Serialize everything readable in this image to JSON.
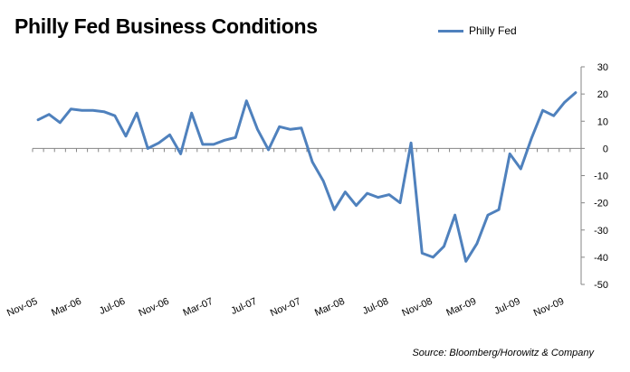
{
  "title": "Philly Fed Business Conditions",
  "source": "Source: Bloomberg/Horowitz & Company",
  "chart_data": {
    "type": "line",
    "title": "Philly Fed Business Conditions",
    "legend_position": "top-right",
    "grid": false,
    "ylim": [
      -50,
      30
    ],
    "y_ticks": [
      30,
      20,
      10,
      0,
      -10,
      -20,
      -30,
      -40,
      -50
    ],
    "y_axis_side": "right",
    "x_tick_labels": [
      "Nov-05",
      "Mar-06",
      "Jul-06",
      "Nov-06",
      "Mar-07",
      "Jul-07",
      "Nov-07",
      "Mar-08",
      "Jul-08",
      "Nov-08",
      "Mar-09",
      "Jul-09",
      "Nov-09"
    ],
    "series": [
      {
        "name": "Philly Fed",
        "color": "#4f81bd",
        "x": [
          "Nov-05",
          "Dec-05",
          "Jan-06",
          "Feb-06",
          "Mar-06",
          "Apr-06",
          "May-06",
          "Jun-06",
          "Jul-06",
          "Aug-06",
          "Sep-06",
          "Oct-06",
          "Nov-06",
          "Dec-06",
          "Jan-07",
          "Feb-07",
          "Mar-07",
          "Apr-07",
          "May-07",
          "Jun-07",
          "Jul-07",
          "Aug-07",
          "Sep-07",
          "Oct-07",
          "Nov-07",
          "Dec-07",
          "Jan-08",
          "Feb-08",
          "Mar-08",
          "Apr-08",
          "May-08",
          "Jun-08",
          "Jul-08",
          "Aug-08",
          "Sep-08",
          "Oct-08",
          "Nov-08",
          "Dec-08",
          "Jan-09",
          "Feb-09",
          "Mar-09",
          "Apr-09",
          "May-09",
          "Jun-09",
          "Jul-09",
          "Aug-09",
          "Sep-09",
          "Oct-09",
          "Nov-09",
          "Dec-09"
        ],
        "values": [
          10.5,
          12.5,
          9.5,
          14.5,
          14,
          14,
          13.5,
          12,
          4.5,
          13,
          0,
          2,
          5,
          -2,
          13,
          1.5,
          1.5,
          3,
          4,
          17.5,
          7,
          -0.5,
          8,
          7,
          7.5,
          -5,
          -12,
          -22.5,
          -16,
          -21,
          -16.5,
          -18,
          -17,
          -20,
          2,
          -38.5,
          -40,
          -36,
          -24.5,
          -41.5,
          -35,
          -24.5,
          -22.5,
          -2,
          -7.5,
          4,
          14,
          12,
          17,
          20.5
        ]
      }
    ]
  }
}
